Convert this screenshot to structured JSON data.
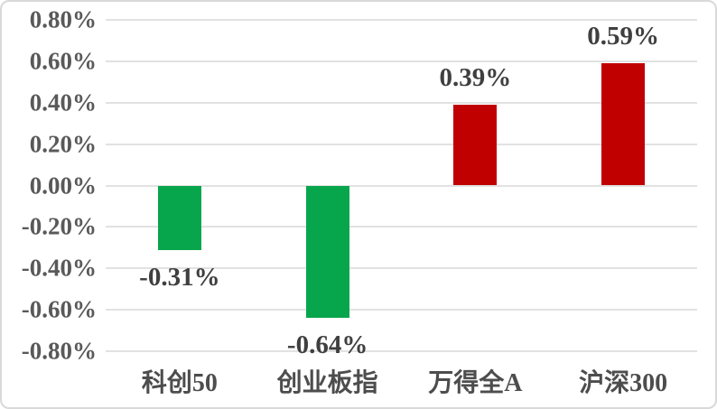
{
  "chart_data": {
    "type": "bar",
    "categories": [
      "科创50",
      "创业板指",
      "万得全A",
      "沪深300"
    ],
    "values": [
      -0.31,
      -0.64,
      0.39,
      0.59
    ],
    "value_labels": [
      "-0.31%",
      "-0.64%",
      "0.39%",
      "0.59%"
    ],
    "y_tick_labels": [
      "0.80%",
      "0.60%",
      "0.40%",
      "0.20%",
      "0.00%",
      "-0.20%",
      "-0.40%",
      "-0.60%",
      "-0.80%"
    ],
    "ylim": [
      -0.8,
      0.8
    ],
    "ytick_step": 0.2,
    "unit": "%",
    "title": "",
    "xlabel": "",
    "ylabel": "",
    "grid": "horizontal",
    "legend": "none",
    "colors": {
      "positive_bar": "#c00000",
      "negative_bar": "#08a64c",
      "gridline": "#e2e2e2",
      "axis_text": "#595959",
      "data_label_text": "#3f3f3f"
    }
  }
}
